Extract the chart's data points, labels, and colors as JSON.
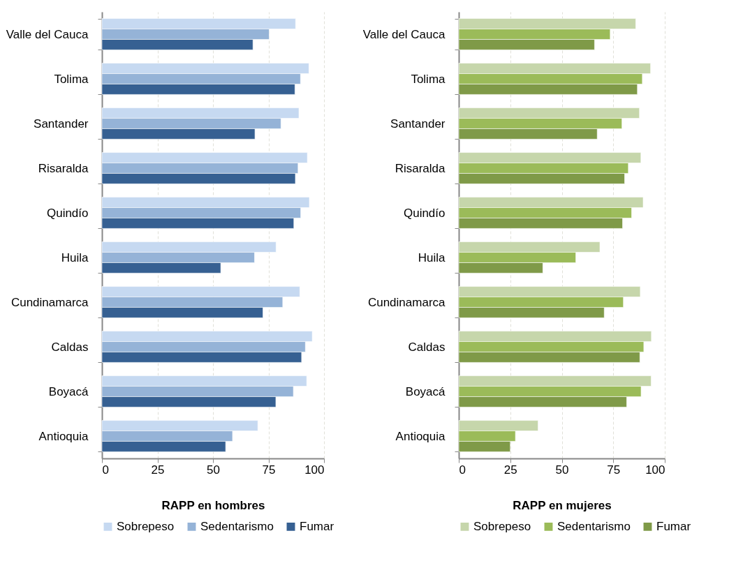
{
  "chart_data": [
    {
      "type": "bar",
      "orientation": "horizontal",
      "xlabel": "RAPP en hombres",
      "categories": [
        "Valle del Cauca",
        "Tolima",
        "Santander",
        "Risaralda",
        "Quindío",
        "Huila",
        "Cundinamarca",
        "Caldas",
        "Boyacá",
        "Antioquia"
      ],
      "series": [
        {
          "name": "Sobrepeso",
          "color": "#c6d9f1",
          "values": [
            87.2,
            93.2,
            88.7,
            92.5,
            93.4,
            78.4,
            89.1,
            94.7,
            92.2,
            70.2
          ]
        },
        {
          "name": "Sedentarismo",
          "color": "#95b3d7",
          "values": [
            75.3,
            89.4,
            80.6,
            88.3,
            89.5,
            68.7,
            81.4,
            91.6,
            86.2,
            58.8
          ]
        },
        {
          "name": "Fumar",
          "color": "#366092",
          "values": [
            68.0,
            86.9,
            68.9,
            87.1,
            86.4,
            53.5,
            72.5,
            89.9,
            78.3,
            55.7
          ]
        }
      ],
      "xlim": [
        0,
        100
      ],
      "xticks": [
        0,
        25,
        50,
        75,
        100
      ],
      "grid": "x",
      "legend": "bottom"
    },
    {
      "type": "bar",
      "orientation": "horizontal",
      "xlabel": "RAPP en mujeres",
      "categories": [
        "Valle del Cauca",
        "Tolima",
        "Santander",
        "Risaralda",
        "Quindío",
        "Huila",
        "Cundinamarca",
        "Caldas",
        "Boyacá",
        "Antioquia"
      ],
      "series": [
        {
          "name": "Sobrepeso",
          "color": "#c6d6ab",
          "values": [
            85.9,
            93.1,
            87.7,
            88.4,
            89.5,
            68.5,
            88.1,
            93.5,
            93.4,
            38.5
          ]
        },
        {
          "name": "Sedentarismo",
          "color": "#9bbb59",
          "values": [
            73.5,
            89.1,
            79.2,
            82.3,
            83.9,
            56.8,
            79.9,
            89.8,
            88.5,
            27.5
          ]
        },
        {
          "name": "Fumar",
          "color": "#7f9a48",
          "values": [
            65.9,
            86.7,
            67.2,
            80.5,
            79.5,
            40.8,
            70.6,
            87.9,
            81.5,
            25.0
          ]
        }
      ],
      "xlim": [
        0,
        100
      ],
      "xticks": [
        0,
        25,
        50,
        75,
        100
      ],
      "grid": "x",
      "legend": "bottom"
    }
  ]
}
